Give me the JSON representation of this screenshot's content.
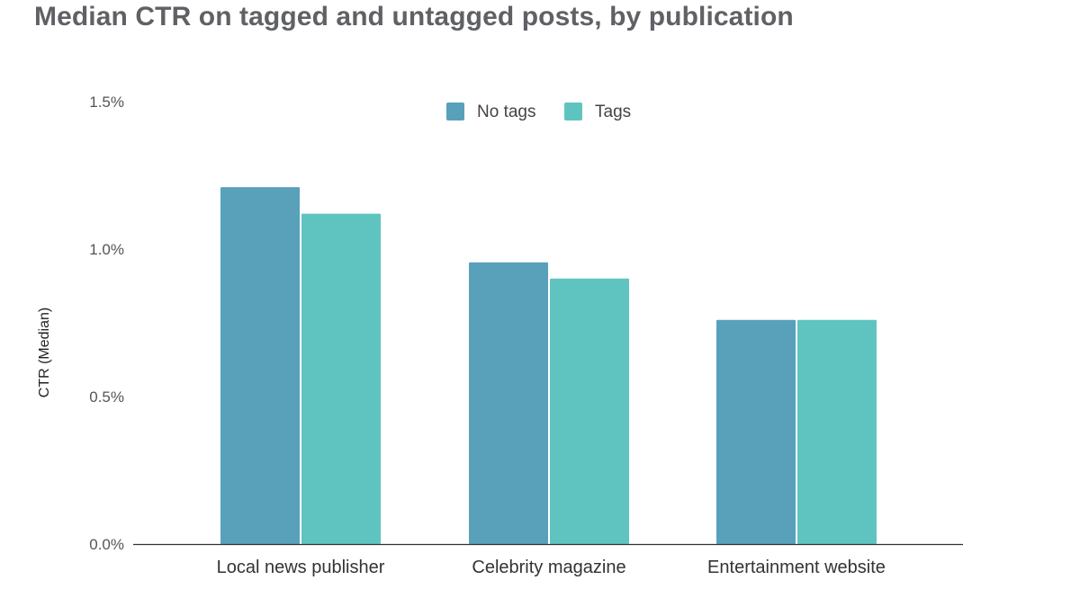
{
  "chart_data": {
    "type": "bar",
    "title": "Median CTR on tagged and untagged posts, by publication",
    "xlabel": "",
    "ylabel": "CTR (Median)",
    "categories": [
      "Local news publisher",
      "Celebrity magazine",
      "Entertainment website"
    ],
    "series": [
      {
        "name": "No tags",
        "color": "#59a0bb",
        "values": [
          1.21,
          0.955,
          0.76
        ]
      },
      {
        "name": "Tags",
        "color": "#5fc4c0",
        "values": [
          1.12,
          0.9,
          0.76
        ]
      }
    ],
    "ylim": [
      0,
      1.5
    ],
    "yticks": [
      0,
      0.5,
      1.0,
      1.5
    ],
    "ytick_labels": [
      "0.0%",
      "0.5%",
      "1.0%",
      "1.5%"
    ],
    "legend_position": "top-center",
    "grid": false
  }
}
